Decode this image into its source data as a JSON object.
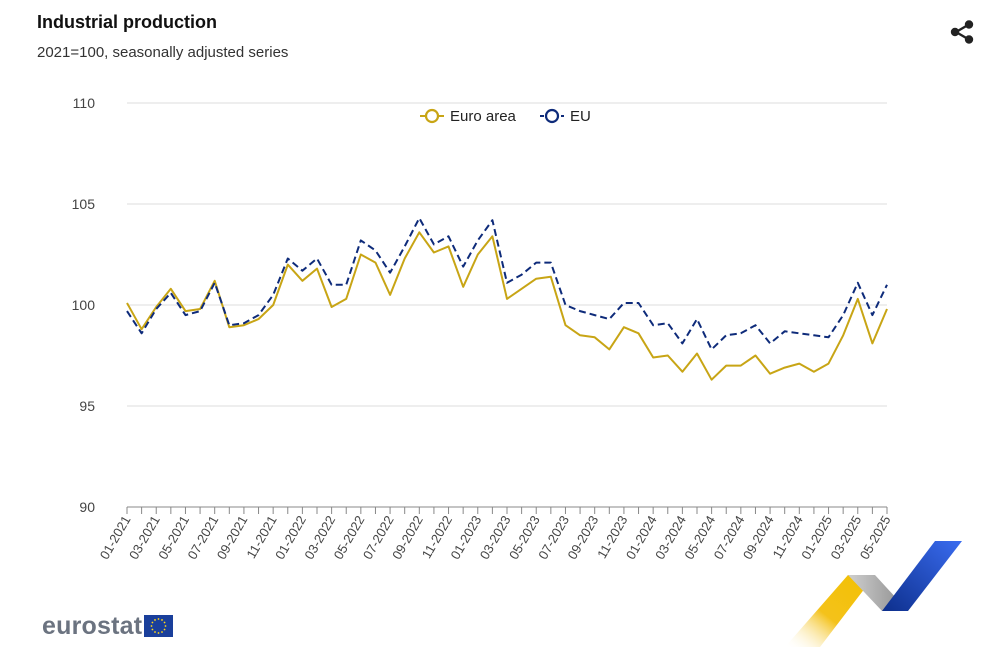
{
  "header": {
    "title": "Industrial production",
    "subtitle": "2021=100, seasonally adjusted series"
  },
  "share": {
    "icon": "share-icon"
  },
  "branding": {
    "logo_text": "eurostat"
  },
  "colors": {
    "euro_area": "#c8a515",
    "eu": "#0e2b7a",
    "grid": "#dedede",
    "axis_text": "#444444"
  },
  "chart_data": {
    "type": "line",
    "title": "Industrial production",
    "subtitle": "2021=100, seasonally adjusted series",
    "xlabel": "",
    "ylabel": "",
    "ylim": [
      90,
      110
    ],
    "yticks": [
      90,
      95,
      100,
      105,
      110
    ],
    "grid": true,
    "legend_position": "top-center",
    "x": [
      "01-2021",
      "02-2021",
      "03-2021",
      "04-2021",
      "05-2021",
      "06-2021",
      "07-2021",
      "08-2021",
      "09-2021",
      "10-2021",
      "11-2021",
      "12-2021",
      "01-2022",
      "02-2022",
      "03-2022",
      "04-2022",
      "05-2022",
      "06-2022",
      "07-2022",
      "08-2022",
      "09-2022",
      "10-2022",
      "11-2022",
      "12-2022",
      "01-2023",
      "02-2023",
      "03-2023",
      "04-2023",
      "05-2023",
      "06-2023",
      "07-2023",
      "08-2023",
      "09-2023",
      "10-2023",
      "11-2023",
      "12-2023",
      "01-2024",
      "02-2024",
      "03-2024",
      "04-2024",
      "05-2024",
      "06-2024",
      "07-2024",
      "08-2024",
      "09-2024",
      "10-2024",
      "11-2024",
      "12-2024",
      "01-2025",
      "02-2025",
      "03-2025",
      "04-2025",
      "05-2025"
    ],
    "xtick_labels": [
      "01-2021",
      "03-2021",
      "05-2021",
      "07-2021",
      "09-2021",
      "11-2021",
      "01-2022",
      "03-2022",
      "05-2022",
      "07-2022",
      "09-2022",
      "11-2022",
      "01-2023",
      "03-2023",
      "05-2023",
      "07-2023",
      "09-2023",
      "11-2023",
      "01-2024",
      "03-2024",
      "05-2024",
      "07-2024",
      "09-2024",
      "11-2024",
      "01-2025",
      "03-2025",
      "05-2025"
    ],
    "series": [
      {
        "name": "Euro area",
        "style": "solid",
        "values": [
          100.1,
          98.8,
          99.9,
          100.8,
          99.7,
          99.8,
          101.2,
          98.9,
          99.0,
          99.3,
          100.0,
          102.0,
          101.2,
          101.8,
          99.9,
          100.3,
          102.5,
          102.1,
          100.5,
          102.3,
          103.6,
          102.6,
          102.9,
          100.9,
          102.5,
          103.4,
          100.3,
          100.8,
          101.3,
          101.4,
          99.0,
          98.5,
          98.4,
          97.8,
          98.9,
          98.6,
          97.4,
          97.5,
          96.7,
          97.6,
          96.3,
          97.0,
          97.0,
          97.5,
          96.6,
          96.9,
          97.1,
          96.7,
          97.1,
          98.5,
          100.3,
          98.1,
          99.8
        ]
      },
      {
        "name": "EU",
        "style": "dashed",
        "values": [
          99.7,
          98.6,
          99.8,
          100.6,
          99.5,
          99.7,
          101.1,
          99.0,
          99.1,
          99.5,
          100.5,
          102.3,
          101.7,
          102.3,
          101.0,
          101.0,
          103.2,
          102.7,
          101.6,
          102.9,
          104.3,
          103.0,
          103.4,
          101.9,
          103.2,
          104.2,
          101.1,
          101.5,
          102.1,
          102.1,
          100.0,
          99.7,
          99.5,
          99.3,
          100.1,
          100.1,
          99.0,
          99.1,
          98.1,
          99.3,
          97.8,
          98.5,
          98.6,
          99.0,
          98.1,
          98.7,
          98.6,
          98.5,
          98.4,
          99.5,
          101.1,
          99.5,
          101.0
        ]
      }
    ]
  }
}
